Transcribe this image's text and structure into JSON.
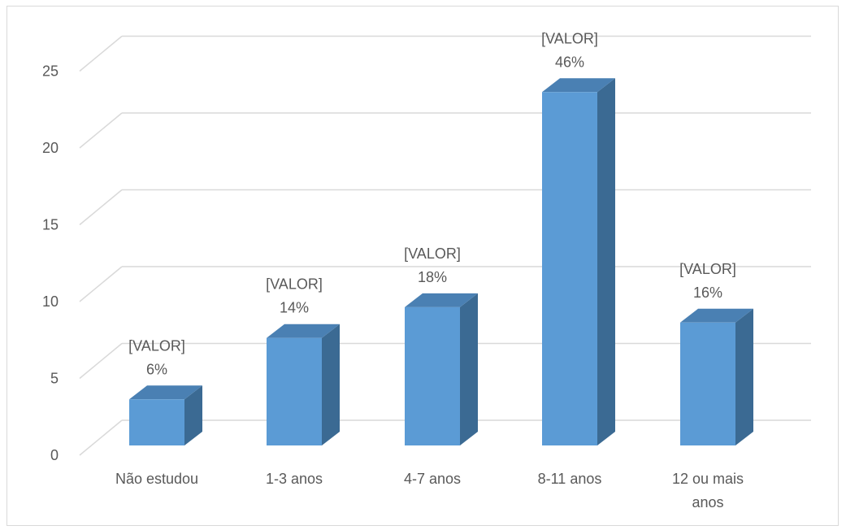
{
  "chart_data": {
    "type": "bar",
    "style": "3d-column",
    "title": "",
    "xlabel": "",
    "ylabel": "",
    "categories": [
      "Não estudou",
      "1-3 anos",
      "4-7 anos",
      "8-11 anos",
      "12 ou mais anos"
    ],
    "category_label_lines": [
      [
        "Não estudou"
      ],
      [
        "1-3 anos"
      ],
      [
        "4-7 anos"
      ],
      [
        "8-11 anos"
      ],
      [
        "12 ou mais",
        "anos"
      ]
    ],
    "values": [
      3,
      7,
      9,
      23,
      8
    ],
    "data_labels": [
      [
        "[VALOR]",
        "6%"
      ],
      [
        "[VALOR]",
        "14%"
      ],
      [
        "[VALOR]",
        "18%"
      ],
      [
        "[VALOR]",
        "46%"
      ],
      [
        "[VALOR]",
        "16%"
      ]
    ],
    "yticks": [
      "0",
      "5",
      "10",
      "15",
      "20",
      "25"
    ],
    "ylim": [
      0,
      25
    ],
    "grid": true,
    "legend": "none",
    "colors": {
      "bar_front": "#5b9bd5",
      "bar_top": "#4a80b3",
      "bar_side": "#3b6a93",
      "grid": "#d9d9d9",
      "text": "#595959"
    }
  }
}
